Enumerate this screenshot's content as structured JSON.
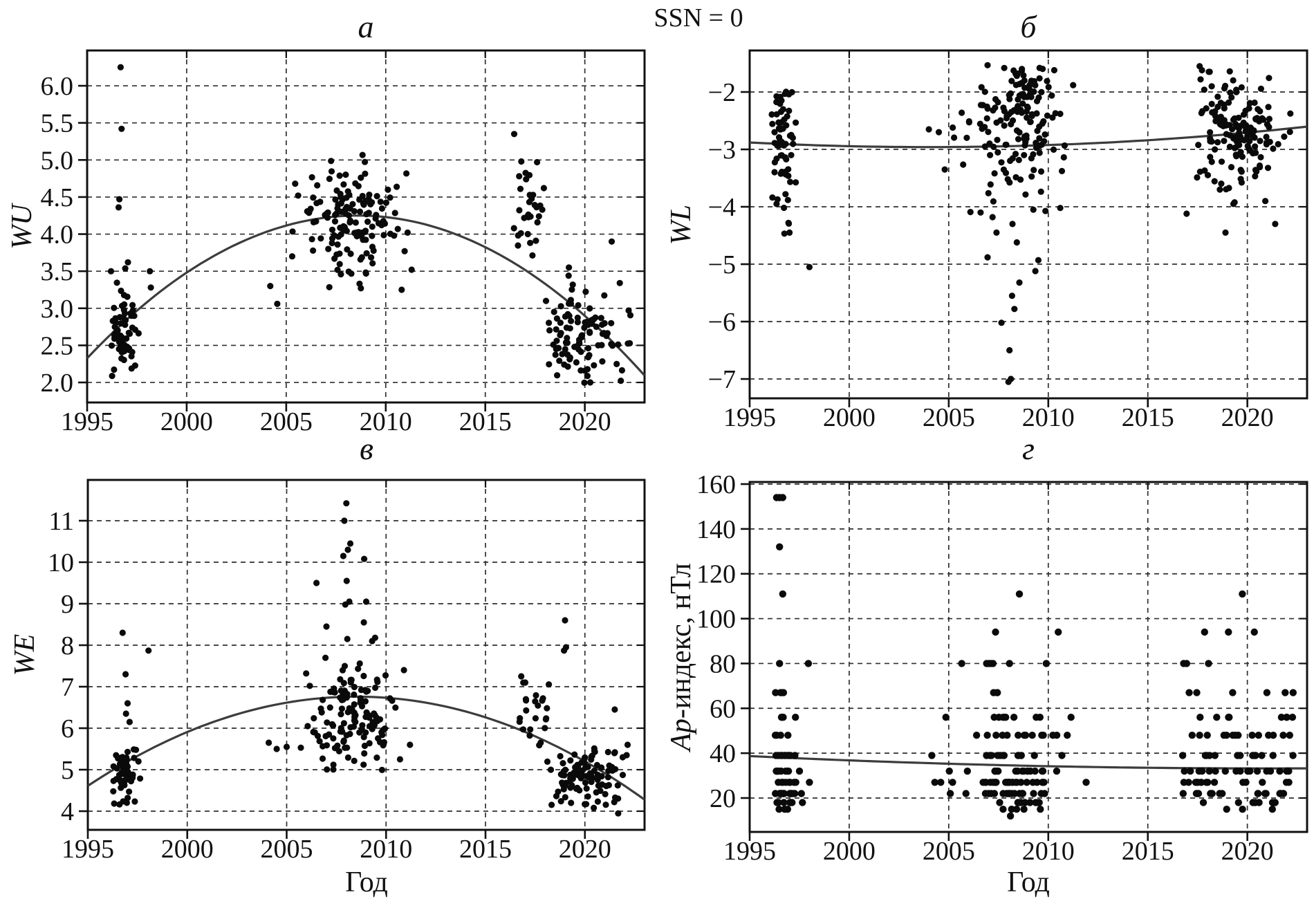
{
  "figure_title": "SSN = 0",
  "colors": {
    "dot": "#0a0a0a",
    "curve": "#3c3c3c",
    "grid": "#2f2f2f",
    "border": "#111111",
    "text": "#111111",
    "background": "#ffffff"
  },
  "chart_data": [
    {
      "id": "a",
      "type": "scatter",
      "title": "а",
      "ylabel": "WU",
      "xlabel": "",
      "grid": "dashed",
      "xlim": [
        1995,
        2023
      ],
      "ylim": [
        1.73,
        6.476
      ],
      "xticks": {
        "values": [
          1995,
          2000,
          2005,
          2010,
          2015,
          2020
        ],
        "labels": [
          "1995",
          "2000",
          "2005",
          "2010",
          "2015",
          "2020"
        ]
      },
      "yticks": {
        "values": [
          6.0,
          5.5,
          5.0,
          4.5,
          4.0,
          3.5,
          3.0,
          2.5,
          2.0
        ],
        "labels": [
          "6.0",
          "5.5",
          "5.0",
          "4.5",
          "4.0",
          "3.5",
          "3.0",
          "2.5",
          "2.0"
        ]
      },
      "trend": {
        "type": "quadratic",
        "vertex": [
          2008.6,
          4.25
        ],
        "k": -0.0104
      },
      "scatter": {
        "points": [
          [
            1996.68,
            6.25
          ],
          [
            1996.73,
            5.42
          ],
          [
            1996.62,
            4.47
          ],
          [
            1996.58,
            4.36
          ],
          [
            1996.2,
            3.5
          ],
          [
            1997.05,
            3.62
          ],
          [
            1998.15,
            3.5
          ],
          [
            1998.2,
            3.28
          ],
          [
            2004.2,
            3.3
          ],
          [
            2004.55,
            3.06
          ],
          [
            2005.3,
            3.7
          ],
          [
            2005.45,
            4.68
          ],
          [
            2005.6,
            4.52
          ],
          [
            2010.8,
            3.25
          ],
          [
            2010.95,
            3.77
          ],
          [
            2011.1,
            4.02
          ],
          [
            2011.3,
            3.52
          ],
          [
            2016.45,
            5.35
          ],
          [
            2017.6,
            4.97
          ],
          [
            2016.7,
            4.78
          ],
          [
            2021.35,
            3.9
          ],
          [
            2022.2,
            2.97
          ],
          [
            2019.2,
            3.55
          ],
          [
            2018.05,
            3.1
          ]
        ],
        "clusters": [
          {
            "n": 62,
            "x": {
              "mean": 1996.8,
              "sd": 0.38,
              "min": 1996.15,
              "max": 1998.25
            },
            "y": {
              "mean": 2.6,
              "sd": 0.38,
              "min": 2.02,
              "max": 3.62
            }
          },
          {
            "n": 138,
            "x": {
              "mean": 2008.2,
              "sd": 1.15,
              "min": 2005.2,
              "max": 2011.5
            },
            "y": {
              "mean": 4.18,
              "sd": 0.37,
              "min": 3.2,
              "max": 5.07
            }
          },
          {
            "n": 30,
            "x": {
              "mean": 2017.2,
              "sd": 0.55,
              "min": 2016.4,
              "max": 2018.15
            },
            "y": {
              "mean": 4.22,
              "sd": 0.38,
              "min": 3.55,
              "max": 5.0
            }
          },
          {
            "n": 100,
            "x": {
              "mean": 2019.9,
              "sd": 1.05,
              "min": 2017.9,
              "max": 2022.35
            },
            "y": {
              "mean": 2.62,
              "sd": 0.34,
              "min": 1.97,
              "max": 3.55
            }
          }
        ]
      }
    },
    {
      "id": "b",
      "type": "scatter",
      "title": "б",
      "ylabel": "WL",
      "xlabel": "",
      "grid": "dashed",
      "xlim": [
        1995,
        2023
      ],
      "ylim": [
        -7.337,
        -1.277
      ],
      "xticks": {
        "values": [
          1995,
          2000,
          2005,
          2010,
          2015,
          2020
        ],
        "labels": [
          "1995",
          "2000",
          "2005",
          "2010",
          "2015",
          "2020"
        ]
      },
      "yticks": {
        "values": [
          -2,
          -3,
          -4,
          -5,
          -6,
          -7
        ],
        "labels": [
          "−2",
          "−3",
          "−4",
          "−5",
          "−6",
          "−7"
        ]
      },
      "trend": {
        "type": "quadratic",
        "vertex": [
          2004.0,
          -2.96
        ],
        "k": 0.000988
      },
      "scatter": {
        "points": [
          [
            2008.0,
            -7.05
          ],
          [
            2008.12,
            -7.0
          ],
          [
            2008.05,
            -6.5
          ],
          [
            2007.65,
            -6.02
          ],
          [
            2008.3,
            -5.78
          ],
          [
            2008.18,
            -5.55
          ],
          [
            2008.55,
            -5.32
          ],
          [
            2009.35,
            -5.12
          ],
          [
            2006.95,
            -4.88
          ],
          [
            2009.5,
            -4.93
          ],
          [
            2008.42,
            -4.62
          ],
          [
            2007.4,
            -4.45
          ],
          [
            2008.2,
            -4.3
          ],
          [
            2007.2,
            -4.18
          ],
          [
            2009.25,
            -4.05
          ],
          [
            2010.6,
            -4.02
          ],
          [
            2006.6,
            -4.1
          ],
          [
            1998.0,
            -5.05
          ],
          [
            1997.0,
            -4.45
          ],
          [
            1996.95,
            -4.28
          ],
          [
            1996.35,
            -3.95
          ],
          [
            1996.8,
            -3.78
          ],
          [
            2016.95,
            -4.12
          ],
          [
            2018.9,
            -4.45
          ],
          [
            2021.4,
            -4.3
          ],
          [
            2019.3,
            -3.95
          ],
          [
            2020.9,
            -3.9
          ],
          [
            2017.6,
            -1.55
          ],
          [
            2017.72,
            -1.62
          ],
          [
            2017.65,
            -1.78
          ],
          [
            2010.3,
            -1.62
          ],
          [
            2005.2,
            -2.62
          ],
          [
            2004.5,
            -2.7
          ],
          [
            2004.0,
            -2.65
          ],
          [
            2004.8,
            -3.35
          ]
        ],
        "clusters": [
          {
            "n": 62,
            "x": {
              "mean": 1996.7,
              "sd": 0.35,
              "min": 1996.1,
              "max": 1997.9
            },
            "y": {
              "mean": -2.85,
              "sd": 0.5,
              "min": -4.5,
              "max": -1.95
            }
          },
          {
            "n": 130,
            "x": {
              "mean": 2008.3,
              "sd": 1.3,
              "min": 2004.4,
              "max": 2011.6
            },
            "y": {
              "mean": -2.55,
              "sd": 0.62,
              "min": -4.25,
              "max": -1.5
            }
          },
          {
            "n": 25,
            "x": {
              "mean": 2008.8,
              "sd": 0.5,
              "min": 2007.8,
              "max": 2009.9
            },
            "y": {
              "mean": -1.95,
              "sd": 0.22,
              "min": -2.35,
              "max": -1.5
            }
          },
          {
            "n": 150,
            "x": {
              "mean": 2019.6,
              "sd": 1.4,
              "min": 2016.4,
              "max": 2022.4
            },
            "y": {
              "mean": -2.75,
              "sd": 0.5,
              "min": -4.45,
              "max": -1.55
            }
          }
        ]
      }
    },
    {
      "id": "v",
      "type": "scatter",
      "title": "в",
      "ylabel": "WE",
      "xlabel": "Год",
      "grid": "dashed",
      "xlim": [
        1995,
        2023
      ],
      "ylim": [
        3.55,
        11.983
      ],
      "xticks": {
        "values": [
          1995,
          2000,
          2005,
          2010,
          2015,
          2020
        ],
        "labels": [
          "1995",
          "2000",
          "2005",
          "2010",
          "2015",
          "2020"
        ]
      },
      "yticks": {
        "values": [
          11,
          10,
          9,
          8,
          7,
          6,
          5,
          4
        ],
        "labels": [
          "11",
          "10",
          "9",
          "8",
          "7",
          "6",
          "5",
          "4"
        ]
      },
      "trend": {
        "type": "quadratic",
        "vertex": [
          2008.5,
          6.76
        ],
        "k": -0.0118
      },
      "scatter": {
        "points": [
          [
            1996.75,
            8.3
          ],
          [
            1998.05,
            7.87
          ],
          [
            1996.9,
            7.3
          ],
          [
            1997.0,
            6.6
          ],
          [
            1996.92,
            6.35
          ],
          [
            1997.1,
            6.15
          ],
          [
            2008.0,
            11.42
          ],
          [
            2007.9,
            11.0
          ],
          [
            2008.2,
            10.45
          ],
          [
            2008.08,
            10.3
          ],
          [
            2007.85,
            10.15
          ],
          [
            2008.9,
            10.08
          ],
          [
            2006.5,
            9.5
          ],
          [
            2008.02,
            9.55
          ],
          [
            2008.15,
            9.05
          ],
          [
            2007.95,
            8.98
          ],
          [
            2009.0,
            9.05
          ],
          [
            2008.88,
            8.55
          ],
          [
            2007.0,
            8.45
          ],
          [
            2008.05,
            8.15
          ],
          [
            2009.3,
            8.1
          ],
          [
            2009.45,
            8.18
          ],
          [
            2010.9,
            7.4
          ],
          [
            2004.1,
            5.65
          ],
          [
            2004.5,
            5.5
          ],
          [
            2005.0,
            5.55
          ],
          [
            2011.2,
            5.6
          ],
          [
            2010.7,
            5.25
          ],
          [
            2016.8,
            7.25
          ],
          [
            2017.0,
            7.1
          ],
          [
            2019.0,
            8.6
          ],
          [
            2019.05,
            7.95
          ],
          [
            2018.95,
            7.87
          ],
          [
            2021.5,
            6.45
          ],
          [
            2021.9,
            5.3
          ],
          [
            2022.1,
            5.35
          ]
        ],
        "clusters": [
          {
            "n": 60,
            "x": {
              "mean": 1996.8,
              "sd": 0.35,
              "min": 1996.2,
              "max": 1998.2
            },
            "y": {
              "mean": 4.92,
              "sd": 0.33,
              "min": 4.08,
              "max": 5.72
            }
          },
          {
            "n": 132,
            "x": {
              "mean": 2008.2,
              "sd": 1.2,
              "min": 2005.3,
              "max": 2011.5
            },
            "y": {
              "mean": 6.3,
              "sd": 0.6,
              "min": 4.95,
              "max": 7.8
            }
          },
          {
            "n": 22,
            "x": {
              "mean": 2017.3,
              "sd": 0.5,
              "min": 2016.7,
              "max": 2018.2
            },
            "y": {
              "mean": 6.4,
              "sd": 0.4,
              "min": 5.5,
              "max": 7.35
            }
          },
          {
            "n": 102,
            "x": {
              "mean": 2019.9,
              "sd": 1.0,
              "min": 2018.0,
              "max": 2022.3
            },
            "y": {
              "mean": 4.75,
              "sd": 0.38,
              "min": 3.9,
              "max": 6.1
            }
          }
        ]
      }
    },
    {
      "id": "g",
      "type": "scatter",
      "title": "г",
      "ylabel_italic": "Ap",
      "ylabel_rest": "-индекс, нТл",
      "xlabel": "Год",
      "grid": "dashed",
      "xlim": [
        1995,
        2023
      ],
      "ylim": [
        4.88,
        160.93
      ],
      "xticks": {
        "values": [
          1995,
          2000,
          2005,
          2010,
          2015,
          2020
        ],
        "labels": [
          "1995",
          "2000",
          "2005",
          "2010",
          "2015",
          "2020"
        ]
      },
      "yticks": {
        "values": [
          160,
          140,
          120,
          100,
          80,
          60,
          40,
          20
        ],
        "labels": [
          "160",
          "140",
          "120",
          "100",
          "80",
          "60",
          "40",
          "20"
        ]
      },
      "trend": {
        "type": "quadratic",
        "vertex": [
          2021.0,
          33.2
        ],
        "k": 0.00814
      },
      "scatter": {
        "points": [
          [
            1996.35,
            154
          ],
          [
            1996.5,
            154
          ],
          [
            1996.66,
            154
          ],
          [
            1996.5,
            132
          ],
          [
            1996.66,
            111
          ],
          [
            1996.5,
            80
          ],
          [
            1997.95,
            80
          ],
          [
            1996.3,
            67
          ],
          [
            1996.55,
            67
          ],
          [
            1996.62,
            67
          ],
          [
            1996.7,
            67
          ],
          [
            1998.0,
            27
          ],
          [
            1997.6,
            22
          ],
          [
            1997.65,
            18
          ],
          [
            1997.5,
            32
          ],
          [
            2008.55,
            111
          ],
          [
            2007.35,
            94
          ],
          [
            2010.5,
            94
          ],
          [
            2005.65,
            80
          ],
          [
            2006.9,
            80
          ],
          [
            2007.02,
            80
          ],
          [
            2007.12,
            80
          ],
          [
            2007.22,
            80
          ],
          [
            2008.05,
            80
          ],
          [
            2009.9,
            80
          ],
          [
            2004.15,
            39
          ],
          [
            2008.1,
            12
          ],
          [
            2004.3,
            27
          ],
          [
            2004.6,
            27
          ],
          [
            2011.9,
            27
          ],
          [
            2019.75,
            111
          ],
          [
            2017.85,
            94
          ],
          [
            2019.05,
            94
          ],
          [
            2020.35,
            94
          ],
          [
            2016.8,
            80
          ],
          [
            2016.95,
            80
          ],
          [
            2018.05,
            80
          ],
          [
            2022.3,
            67
          ],
          [
            2021.9,
            67
          ],
          [
            2016.75,
            39
          ]
        ],
        "level_rows": [
          {
            "x_range": [
              1996.25,
              1997.4
            ],
            "rows": [
              [
                56,
                4
              ],
              [
                48,
                4
              ],
              [
                39,
                14
              ],
              [
                32,
                9
              ],
              [
                27,
                8
              ],
              [
                22,
                16
              ],
              [
                18,
                6
              ],
              [
                15,
                3
              ]
            ]
          },
          {
            "x_range": [
              2006.8,
              2009.8
            ],
            "rows": [
              [
                67,
                3
              ],
              [
                56,
                7
              ],
              [
                48,
                8
              ],
              [
                39,
                8
              ],
              [
                32,
                13
              ],
              [
                27,
                19
              ],
              [
                22,
                14
              ],
              [
                18,
                6
              ],
              [
                15,
                5
              ]
            ]
          },
          {
            "x_range": [
              2004.5,
              2011.7
            ],
            "rows": [
              [
                56,
                3
              ],
              [
                48,
                6
              ],
              [
                39,
                5
              ],
              [
                32,
                6
              ],
              [
                27,
                7
              ],
              [
                22,
                6
              ],
              [
                18,
                3
              ]
            ]
          },
          {
            "x_range": [
              2016.75,
              2022.3
            ],
            "rows": [
              [
                67,
                4
              ],
              [
                56,
                8
              ],
              [
                48,
                14
              ],
              [
                39,
                13
              ],
              [
                32,
                18
              ],
              [
                27,
                15
              ],
              [
                22,
                18
              ],
              [
                18,
                8
              ],
              [
                15,
                3
              ]
            ]
          }
        ]
      }
    }
  ]
}
